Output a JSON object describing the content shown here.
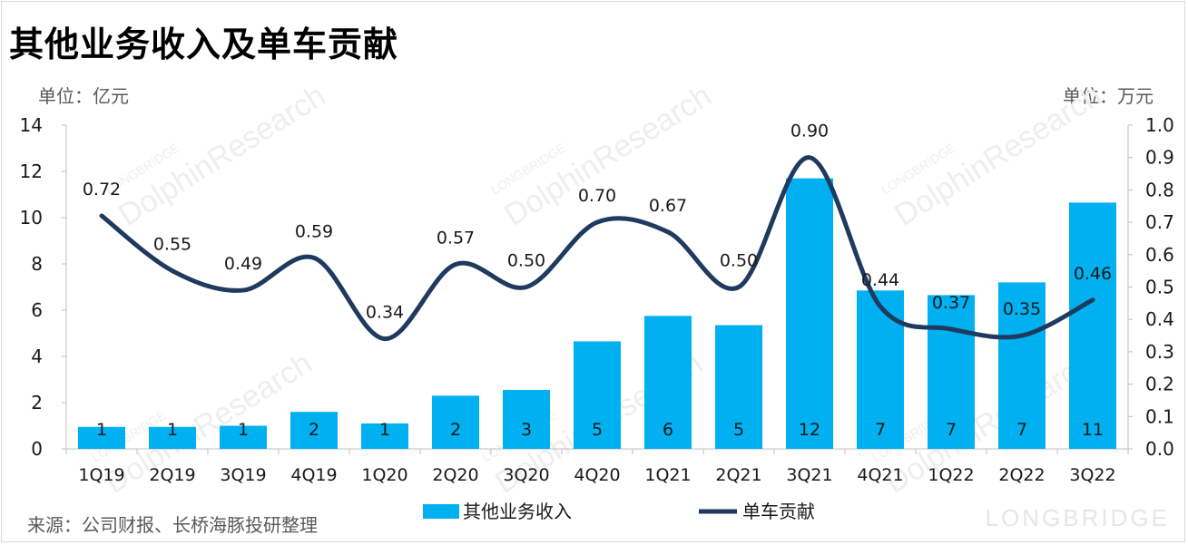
{
  "title": "其他业务收入及单车贡献",
  "unit_left": "单位：亿元",
  "unit_right": "单位：万元",
  "source": "来源：公司财报、长桥海豚投研整理",
  "watermark": {
    "small": "LONGBRIDGE",
    "large": "DolphinResearch"
  },
  "brand": "LONGBRIDGE",
  "colors": {
    "bar": "#00B0F0",
    "line": "#1F3A5F",
    "axis": "#bfbfbf",
    "text": "#1a1a1a"
  },
  "chart_data": {
    "type": "bar",
    "categories": [
      "1Q19",
      "2Q19",
      "3Q19",
      "4Q19",
      "1Q20",
      "2Q20",
      "3Q20",
      "4Q20",
      "1Q21",
      "2Q21",
      "3Q21",
      "4Q21",
      "1Q22",
      "2Q22",
      "3Q22"
    ],
    "series": [
      {
        "name": "其他业务收入",
        "type": "bar",
        "axis": "left",
        "values": [
          0.95,
          0.95,
          1.0,
          1.6,
          1.1,
          2.3,
          2.55,
          4.65,
          5.75,
          5.35,
          11.7,
          6.85,
          6.65,
          7.2,
          10.65
        ],
        "labels": [
          "1",
          "1",
          "1",
          "2",
          "1",
          "2",
          "3",
          "5",
          "6",
          "5",
          "12",
          "7",
          "7",
          "7",
          "11"
        ]
      },
      {
        "name": "单车贡献",
        "type": "line",
        "axis": "right",
        "values": [
          0.72,
          0.55,
          0.49,
          0.59,
          0.34,
          0.57,
          0.5,
          0.7,
          0.67,
          0.5,
          0.9,
          0.44,
          0.37,
          0.35,
          0.46
        ],
        "labels": [
          "0.72",
          "0.55",
          "0.49",
          "0.59",
          "0.34",
          "0.57",
          "0.50",
          "0.70",
          "0.67",
          "0.50",
          "0.90",
          "0.44",
          "0.37",
          "0.35",
          "0.46"
        ]
      }
    ],
    "y_left": {
      "min": 0,
      "max": 14,
      "ticks": [
        "0",
        "2",
        "4",
        "6",
        "8",
        "10",
        "12",
        "14"
      ]
    },
    "y_right": {
      "min": 0,
      "max": 1.0,
      "ticks": [
        "0.0",
        "0.1",
        "0.2",
        "0.3",
        "0.4",
        "0.5",
        "0.6",
        "0.7",
        "0.8",
        "0.9",
        "1.0"
      ]
    },
    "legend": {
      "placement": "bottom-center",
      "entries": [
        "其他业务收入",
        "单车贡献"
      ]
    },
    "grid": false
  }
}
